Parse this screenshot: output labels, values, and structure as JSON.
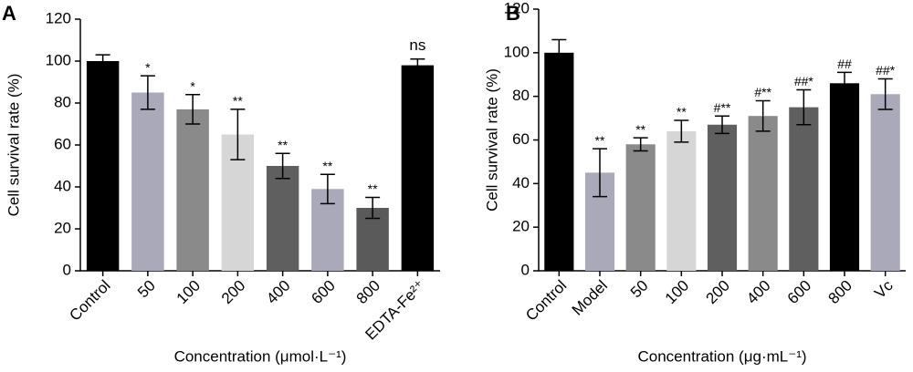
{
  "chart_data": [
    {
      "type": "bar",
      "panel": "A",
      "ylabel": "Cell survival rate (%)",
      "xlabel": "Concentration (μmol·L⁻¹)",
      "categories": [
        "Control",
        "50",
        "100",
        "200",
        "400",
        "600",
        "800",
        "EDTA-Fe²⁺"
      ],
      "values": [
        100,
        85,
        77,
        65,
        50,
        39,
        30,
        98
      ],
      "errors": [
        3,
        8,
        7,
        12,
        6,
        7,
        5,
        3
      ],
      "annotations": [
        null,
        "*",
        "*",
        "**",
        "**",
        "**",
        "**",
        "ns"
      ],
      "colors": [
        "#000000",
        "#a9a9b9",
        "#8a8a8a",
        "#d6d6d6",
        "#5f5f5f",
        "#a9a9b9",
        "#5a5a5a",
        "#000000"
      ],
      "ylim": [
        0,
        120
      ],
      "yticks": [
        0,
        20,
        40,
        60,
        80,
        100,
        120
      ]
    },
    {
      "type": "bar",
      "panel": "B",
      "ylabel": "Cell survival rate (%)",
      "xlabel": "Concentration (μg·mL⁻¹)",
      "categories": [
        "Control",
        "Model",
        "50",
        "100",
        "200",
        "400",
        "600",
        "800",
        "Vc"
      ],
      "values": [
        100,
        45,
        58,
        64,
        67,
        71,
        75,
        86,
        81
      ],
      "errors": [
        6,
        11,
        3,
        5,
        4,
        7,
        8,
        5,
        7
      ],
      "annotations": [
        null,
        "**",
        "**",
        "**",
        "#**",
        "#**",
        "##*",
        "##",
        "##*"
      ],
      "colors": [
        "#000000",
        "#a9a9b9",
        "#8a8a8a",
        "#d6d6d6",
        "#5f5f5f",
        "#8a8a8a",
        "#5f5f5f",
        "#000000",
        "#a9a9b9"
      ],
      "ylim": [
        0,
        120
      ],
      "yticks": [
        0,
        20,
        40,
        60,
        80,
        100,
        120
      ]
    }
  ]
}
